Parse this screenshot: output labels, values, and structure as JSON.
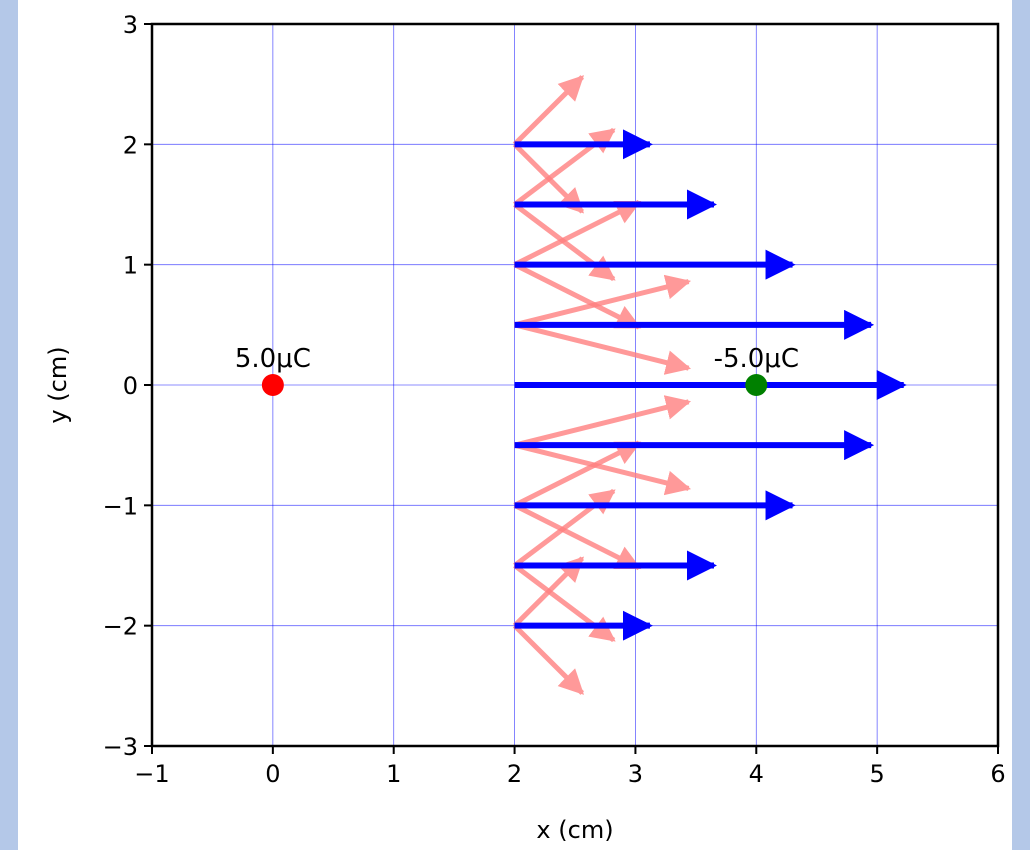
{
  "chart_data": {
    "type": "quiver",
    "xlabel": "x (cm)",
    "ylabel": "y (cm)",
    "xlim": [
      -1,
      6
    ],
    "ylim": [
      -3,
      3
    ],
    "xticks": [
      -1,
      0,
      1,
      2,
      3,
      4,
      5,
      6
    ],
    "yticks": [
      -3,
      -2,
      -1,
      0,
      1,
      2,
      3
    ],
    "xtick_labels": [
      "−1",
      "0",
      "1",
      "2",
      "3",
      "4",
      "5",
      "6"
    ],
    "ytick_labels": [
      "−3",
      "−2",
      "−1",
      "0",
      "1",
      "2",
      "3"
    ],
    "grid": true,
    "colors": {
      "grid": "#0000ff",
      "net_field": "#0000ff",
      "component_field": "#ff8080",
      "positive_charge": "#ff0000",
      "negative_charge": "#008000",
      "outer_background": "#b4c8e8"
    },
    "charges": [
      {
        "x": 0,
        "y": 0,
        "label": "5.0μC",
        "color": "#ff0000"
      },
      {
        "x": 4,
        "y": 0,
        "label": "-5.0μC",
        "color": "#008000"
      }
    ],
    "net_field_vectors": [
      {
        "x": 2,
        "y": 2,
        "dx": 1.12,
        "dy": 0
      },
      {
        "x": 2,
        "y": 1.5,
        "dx": 1.65,
        "dy": 0
      },
      {
        "x": 2,
        "y": 1,
        "dx": 2.3,
        "dy": 0
      },
      {
        "x": 2,
        "y": 0.5,
        "dx": 2.95,
        "dy": 0
      },
      {
        "x": 2,
        "y": 0,
        "dx": 3.22,
        "dy": 0
      },
      {
        "x": 2,
        "y": -0.5,
        "dx": 2.95,
        "dy": 0
      },
      {
        "x": 2,
        "y": -1,
        "dx": 2.3,
        "dy": 0
      },
      {
        "x": 2,
        "y": -1.5,
        "dx": 1.65,
        "dy": 0
      },
      {
        "x": 2,
        "y": -2,
        "dx": 1.12,
        "dy": 0
      }
    ],
    "component_field_vectors": [
      {
        "x": 2,
        "y": 2,
        "dx": 0.56,
        "dy": 0.56
      },
      {
        "x": 2,
        "y": 2,
        "dx": 0.56,
        "dy": -0.56
      },
      {
        "x": 2,
        "y": 1.5,
        "dx": 0.82,
        "dy": 0.62
      },
      {
        "x": 2,
        "y": 1.5,
        "dx": 0.82,
        "dy": -0.62
      },
      {
        "x": 2,
        "y": 1,
        "dx": 1.03,
        "dy": 0.52
      },
      {
        "x": 2,
        "y": 1,
        "dx": 1.03,
        "dy": -0.52
      },
      {
        "x": 2,
        "y": 0.5,
        "dx": 1.44,
        "dy": 0.36
      },
      {
        "x": 2,
        "y": 0.5,
        "dx": 1.44,
        "dy": -0.36
      },
      {
        "x": 2,
        "y": -0.5,
        "dx": 1.44,
        "dy": 0.36
      },
      {
        "x": 2,
        "y": -0.5,
        "dx": 1.44,
        "dy": -0.36
      },
      {
        "x": 2,
        "y": -1,
        "dx": 1.03,
        "dy": 0.52
      },
      {
        "x": 2,
        "y": -1,
        "dx": 1.03,
        "dy": -0.52
      },
      {
        "x": 2,
        "y": -1.5,
        "dx": 0.82,
        "dy": 0.62
      },
      {
        "x": 2,
        "y": -1.5,
        "dx": 0.82,
        "dy": -0.62
      },
      {
        "x": 2,
        "y": -2,
        "dx": 0.56,
        "dy": 0.56
      },
      {
        "x": 2,
        "y": -2,
        "dx": 0.56,
        "dy": -0.56
      }
    ]
  }
}
